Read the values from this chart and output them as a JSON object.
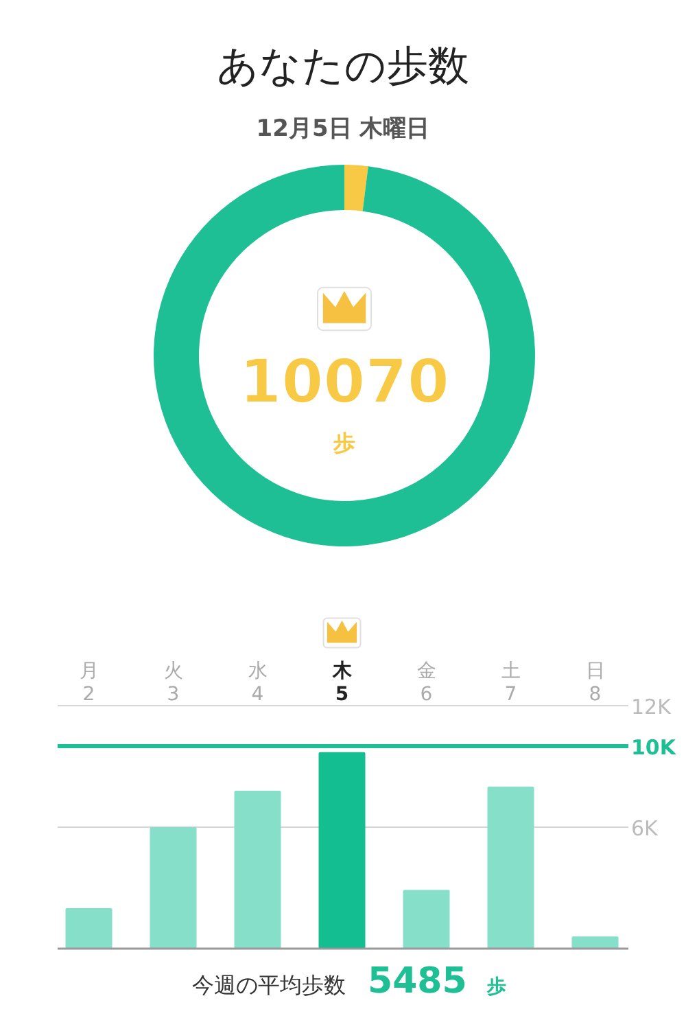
{
  "chart_data": [
    {
      "type": "donut",
      "title": "あなたの歩数",
      "subtitle": "12月5日 木曜日",
      "categories": [
        null,
        null
      ],
      "values": [
        2,
        98
      ],
      "colors": [
        "#f8c944",
        "#1ebf95"
      ],
      "annotations": [
        "10070",
        "歩"
      ]
    },
    {
      "type": "bar",
      "categories": [
        "月\n2",
        "火\n3",
        "水\n4",
        "木\n5",
        "金\n6",
        "土\n7",
        "日\n8"
      ],
      "values": [
        2000,
        6000,
        7800,
        9700,
        2900,
        8000,
        600
      ],
      "colors": [
        "#86dfc9",
        "#86dfc9",
        "#86dfc9",
        "#13bf91",
        "#86dfc9",
        "#86dfc9",
        "#86dfc9"
      ],
      "ylim": [
        0,
        12000
      ],
      "yticks": [
        {
          "value": 6000,
          "label": "6K"
        },
        {
          "value": 12000,
          "label": "12K"
        }
      ],
      "grid": "y",
      "ref_lines": [
        {
          "axis": "y",
          "value": 10000,
          "label": "10K",
          "color": "#1ebf95"
        }
      ],
      "annotations": [
        "今週の平均歩数",
        "5485",
        "歩"
      ]
    }
  ]
}
